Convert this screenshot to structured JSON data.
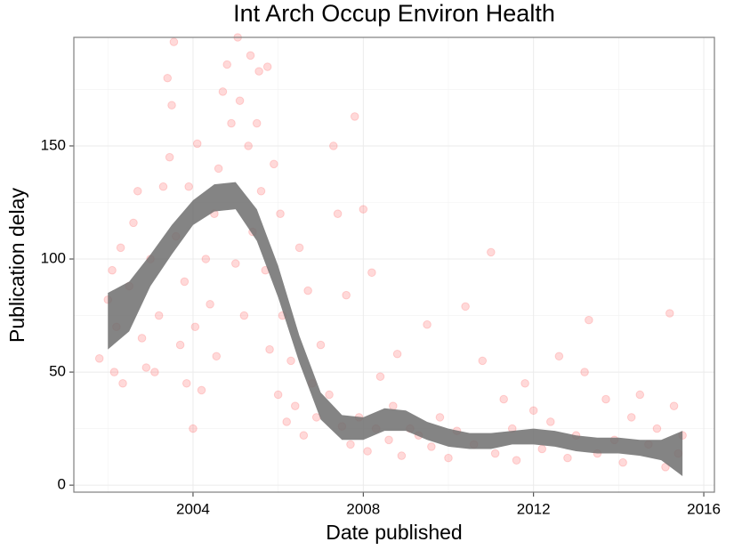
{
  "chart_data": {
    "type": "scatter",
    "title": "Int Arch Occup Environ Health",
    "x_label": "Date published",
    "y_label": "Publication delay",
    "xlim": [
      2001.2,
      2016.25
    ],
    "ylim": [
      -3.1,
      198
    ],
    "xticks": [
      2004,
      2008,
      2012,
      2016
    ],
    "yticks": [
      0,
      50,
      100,
      150
    ],
    "x_minor_grid": [
      2002,
      2006,
      2010,
      2014
    ],
    "y_minor_grid": [
      25,
      75,
      125,
      175
    ],
    "grid": true,
    "color": "#ff0000",
    "opacity": 0.15,
    "x": [
      2001.8,
      2002.0,
      2002.1,
      2002.15,
      2002.2,
      2002.3,
      2002.35,
      2002.5,
      2002.6,
      2002.7,
      2002.8,
      2002.9,
      2003.0,
      2003.1,
      2003.2,
      2003.3,
      2003.4,
      2003.45,
      2003.5,
      2003.55,
      2003.6,
      2003.7,
      2003.8,
      2003.85,
      2003.9,
      2004.0,
      2004.05,
      2004.1,
      2004.2,
      2004.3,
      2004.4,
      2004.5,
      2004.55,
      2004.6,
      2004.7,
      2004.8,
      2004.9,
      2005.0,
      2005.05,
      2005.1,
      2005.2,
      2005.3,
      2005.35,
      2005.4,
      2005.5,
      2005.55,
      2005.6,
      2005.7,
      2005.75,
      2005.8,
      2005.9,
      2006.0,
      2006.05,
      2006.1,
      2006.2,
      2006.3,
      2006.4,
      2006.5,
      2006.6,
      2006.7,
      2006.8,
      2006.9,
      2007.0,
      2007.2,
      2007.3,
      2007.4,
      2007.5,
      2007.6,
      2007.7,
      2007.8,
      2007.9,
      2008.0,
      2008.1,
      2008.2,
      2008.3,
      2008.4,
      2008.6,
      2008.7,
      2008.8,
      2008.9,
      2009.1,
      2009.3,
      2009.5,
      2009.6,
      2009.8,
      2010.0,
      2010.2,
      2010.4,
      2010.6,
      2010.8,
      2011.0,
      2011.1,
      2011.3,
      2011.5,
      2011.6,
      2011.8,
      2012.0,
      2012.2,
      2012.4,
      2012.6,
      2012.8,
      2013.0,
      2013.2,
      2013.3,
      2013.5,
      2013.7,
      2013.9,
      2014.1,
      2014.3,
      2014.5,
      2014.7,
      2014.9,
      2015.1,
      2015.2,
      2015.3,
      2015.4,
      2015.5
    ],
    "y": [
      56,
      82,
      95,
      50,
      70,
      105,
      45,
      88,
      116,
      130,
      65,
      52,
      100,
      50,
      75,
      132,
      180,
      145,
      168,
      196,
      110,
      62,
      90,
      45,
      132,
      25,
      70,
      151,
      42,
      100,
      80,
      120,
      57,
      140,
      174,
      186,
      160,
      98,
      198,
      170,
      75,
      150,
      190,
      112,
      160,
      183,
      130,
      95,
      185,
      60,
      142,
      40,
      120,
      75,
      28,
      55,
      35,
      105,
      22,
      86,
      45,
      30,
      62,
      40,
      150,
      120,
      26,
      84,
      18,
      163,
      30,
      122,
      15,
      94,
      25,
      48,
      20,
      35,
      58,
      13,
      25,
      22,
      71,
      17,
      30,
      12,
      24,
      79,
      18,
      55,
      103,
      14,
      38,
      25,
      11,
      45,
      33,
      16,
      28,
      57,
      12,
      22,
      50,
      73,
      14,
      38,
      20,
      10,
      30,
      40,
      18,
      25,
      8,
      76,
      35,
      14,
      22
    ],
    "smooth": {
      "color": "#6e6e6e",
      "x": [
        2002.0,
        2002.5,
        2003.0,
        2003.5,
        2004.0,
        2004.5,
        2005.0,
        2005.5,
        2006.0,
        2006.5,
        2007.0,
        2007.5,
        2008.0,
        2008.5,
        2009.0,
        2009.5,
        2010.0,
        2010.5,
        2011.0,
        2011.5,
        2012.0,
        2012.5,
        2013.0,
        2013.5,
        2014.0,
        2014.5,
        2015.0,
        2015.5
      ],
      "lower": [
        60,
        68,
        88,
        102,
        115,
        121,
        122,
        108,
        83,
        54,
        29,
        20,
        20,
        24,
        24,
        20,
        17,
        16,
        16,
        18,
        18,
        17,
        15,
        14,
        14,
        13,
        11,
        4
      ],
      "upper": [
        85,
        90,
        102,
        115,
        126,
        133,
        134,
        122,
        97,
        66,
        41,
        31,
        30,
        34,
        33,
        28,
        25,
        23,
        23,
        24,
        25,
        24,
        22,
        21,
        21,
        20,
        20,
        24
      ]
    }
  }
}
